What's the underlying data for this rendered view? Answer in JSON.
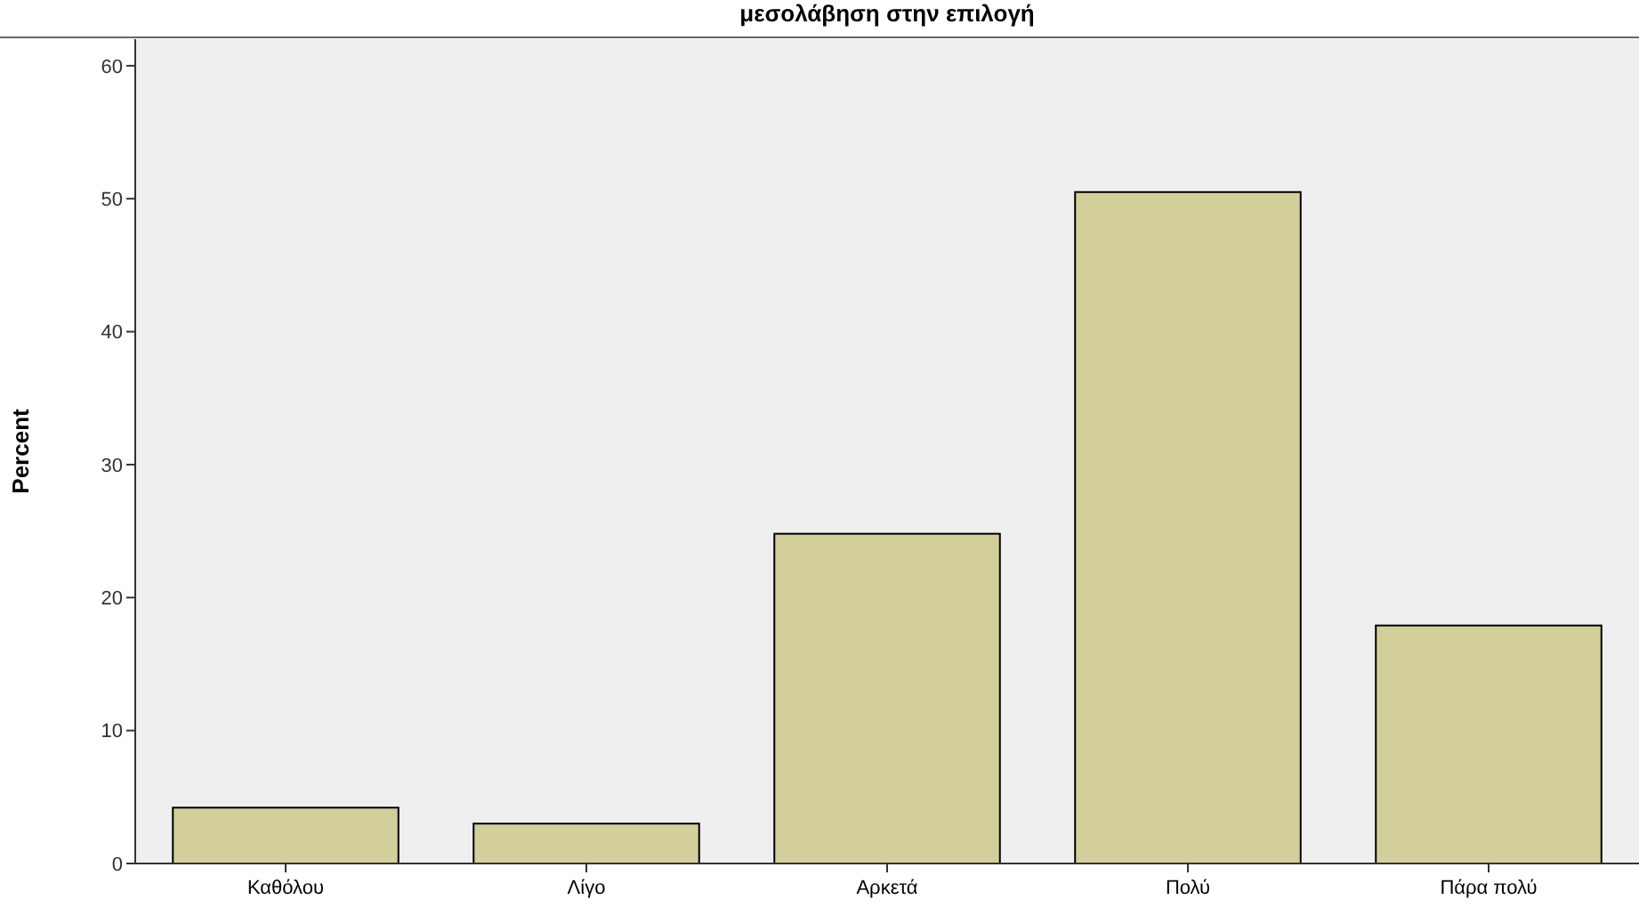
{
  "chart_data": {
    "type": "bar",
    "title": "μεσολάβηση στην επιλογή",
    "ylabel": "Percent",
    "categories": [
      "Καθόλου",
      "Λίγο",
      "Αρκετά",
      "Πολύ",
      "Πάρα πολύ"
    ],
    "values": [
      4.2,
      3.0,
      24.8,
      50.5,
      17.9
    ],
    "color": "#d3cf9a",
    "ylim": [
      0,
      62
    ],
    "yticks": [
      0,
      10,
      20,
      30,
      40,
      50,
      60
    ],
    "grid": false
  }
}
